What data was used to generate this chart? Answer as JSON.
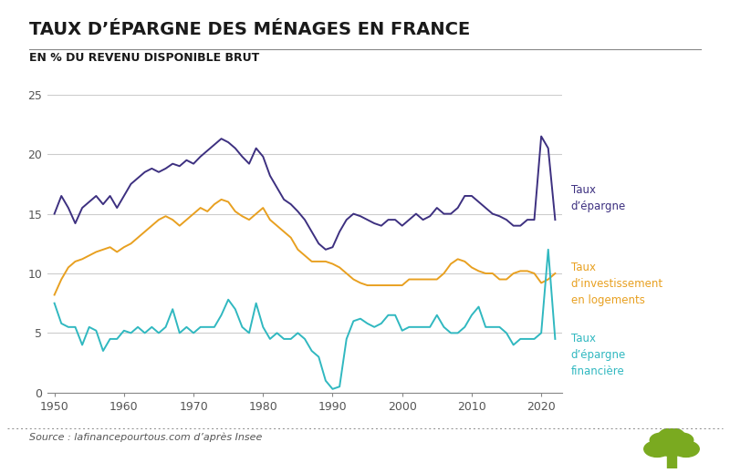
{
  "title": "TAUX D’ÉPARGNE DES MÉNAGES EN FRANCE",
  "subtitle": "EN % DU REVENU DISPONIBLE BRUT",
  "source": "Source : lafinancepourtous.com d’après Insee",
  "colors": {
    "taux_epargne": "#3d3080",
    "taux_investissement": "#e8a020",
    "taux_financiere": "#30b8c0"
  },
  "ylim": [
    0,
    25
  ],
  "yticks": [
    0,
    5,
    10,
    15,
    20,
    25
  ],
  "xlim": [
    1949,
    2023
  ],
  "xticks": [
    1950,
    1960,
    1970,
    1980,
    1990,
    2000,
    2010,
    2020
  ],
  "taux_epargne_years": [
    1950,
    1951,
    1952,
    1953,
    1954,
    1955,
    1956,
    1957,
    1958,
    1959,
    1960,
    1961,
    1962,
    1963,
    1964,
    1965,
    1966,
    1967,
    1968,
    1969,
    1970,
    1971,
    1972,
    1973,
    1974,
    1975,
    1976,
    1977,
    1978,
    1979,
    1980,
    1981,
    1982,
    1983,
    1984,
    1985,
    1986,
    1987,
    1988,
    1989,
    1990,
    1991,
    1992,
    1993,
    1994,
    1995,
    1996,
    1997,
    1998,
    1999,
    2000,
    2001,
    2002,
    2003,
    2004,
    2005,
    2006,
    2007,
    2008,
    2009,
    2010,
    2011,
    2012,
    2013,
    2014,
    2015,
    2016,
    2017,
    2018,
    2019,
    2020,
    2021,
    2022
  ],
  "taux_epargne_values": [
    15.0,
    16.5,
    15.5,
    14.2,
    15.5,
    16.0,
    16.5,
    15.8,
    16.5,
    15.5,
    16.5,
    17.5,
    18.0,
    18.5,
    18.8,
    18.5,
    18.8,
    19.2,
    19.0,
    19.5,
    19.2,
    19.8,
    20.3,
    20.8,
    21.3,
    21.0,
    20.5,
    19.8,
    19.2,
    20.5,
    19.8,
    18.2,
    17.2,
    16.2,
    15.8,
    15.2,
    14.5,
    13.5,
    12.5,
    12.0,
    12.2,
    13.5,
    14.5,
    15.0,
    14.8,
    14.5,
    14.2,
    14.0,
    14.5,
    14.5,
    14.0,
    14.5,
    15.0,
    14.5,
    14.8,
    15.5,
    15.0,
    15.0,
    15.5,
    16.5,
    16.5,
    16.0,
    15.5,
    15.0,
    14.8,
    14.5,
    14.0,
    14.0,
    14.5,
    14.5,
    21.5,
    20.5,
    14.5
  ],
  "taux_investissement_years": [
    1950,
    1951,
    1952,
    1953,
    1954,
    1955,
    1956,
    1957,
    1958,
    1959,
    1960,
    1961,
    1962,
    1963,
    1964,
    1965,
    1966,
    1967,
    1968,
    1969,
    1970,
    1971,
    1972,
    1973,
    1974,
    1975,
    1976,
    1977,
    1978,
    1979,
    1980,
    1981,
    1982,
    1983,
    1984,
    1985,
    1986,
    1987,
    1988,
    1989,
    1990,
    1991,
    1992,
    1993,
    1994,
    1995,
    1996,
    1997,
    1998,
    1999,
    2000,
    2001,
    2002,
    2003,
    2004,
    2005,
    2006,
    2007,
    2008,
    2009,
    2010,
    2011,
    2012,
    2013,
    2014,
    2015,
    2016,
    2017,
    2018,
    2019,
    2020,
    2021,
    2022
  ],
  "taux_investissement_values": [
    8.2,
    9.5,
    10.5,
    11.0,
    11.2,
    11.5,
    11.8,
    12.0,
    12.2,
    11.8,
    12.2,
    12.5,
    13.0,
    13.5,
    14.0,
    14.5,
    14.8,
    14.5,
    14.0,
    14.5,
    15.0,
    15.5,
    15.2,
    15.8,
    16.2,
    16.0,
    15.2,
    14.8,
    14.5,
    15.0,
    15.5,
    14.5,
    14.0,
    13.5,
    13.0,
    12.0,
    11.5,
    11.0,
    11.0,
    11.0,
    10.8,
    10.5,
    10.0,
    9.5,
    9.2,
    9.0,
    9.0,
    9.0,
    9.0,
    9.0,
    9.0,
    9.5,
    9.5,
    9.5,
    9.5,
    9.5,
    10.0,
    10.8,
    11.2,
    11.0,
    10.5,
    10.2,
    10.0,
    10.0,
    9.5,
    9.5,
    10.0,
    10.2,
    10.2,
    10.0,
    9.2,
    9.5,
    10.0
  ],
  "taux_financiere_years": [
    1950,
    1951,
    1952,
    1953,
    1954,
    1955,
    1956,
    1957,
    1958,
    1959,
    1960,
    1961,
    1962,
    1963,
    1964,
    1965,
    1966,
    1967,
    1968,
    1969,
    1970,
    1971,
    1972,
    1973,
    1974,
    1975,
    1976,
    1977,
    1978,
    1979,
    1980,
    1981,
    1982,
    1983,
    1984,
    1985,
    1986,
    1987,
    1988,
    1989,
    1990,
    1991,
    1992,
    1993,
    1994,
    1995,
    1996,
    1997,
    1998,
    1999,
    2000,
    2001,
    2002,
    2003,
    2004,
    2005,
    2006,
    2007,
    2008,
    2009,
    2010,
    2011,
    2012,
    2013,
    2014,
    2015,
    2016,
    2017,
    2018,
    2019,
    2020,
    2021,
    2022
  ],
  "taux_financiere_values": [
    7.5,
    5.8,
    5.5,
    5.5,
    4.0,
    5.5,
    5.2,
    3.5,
    4.5,
    4.5,
    5.2,
    5.0,
    5.5,
    5.0,
    5.5,
    5.0,
    5.5,
    7.0,
    5.0,
    5.5,
    5.0,
    5.5,
    5.5,
    5.5,
    6.5,
    7.8,
    7.0,
    5.5,
    5.0,
    7.5,
    5.5,
    4.5,
    5.0,
    4.5,
    4.5,
    5.0,
    4.5,
    3.5,
    3.0,
    1.0,
    0.3,
    0.5,
    4.5,
    6.0,
    6.2,
    5.8,
    5.5,
    5.8,
    6.5,
    6.5,
    5.2,
    5.5,
    5.5,
    5.5,
    5.5,
    6.5,
    5.5,
    5.0,
    5.0,
    5.5,
    6.5,
    7.2,
    5.5,
    5.5,
    5.5,
    5.0,
    4.0,
    4.5,
    4.5,
    4.5,
    5.0,
    12.0,
    4.5
  ],
  "ann_epargne": {
    "text": "Taux\nd’épargne",
    "y_fig": 0.58,
    "color": "#3d3080"
  },
  "ann_invest": {
    "text": "Taux\nd’investissement\nen logements",
    "y_fig": 0.4,
    "color": "#e8a020"
  },
  "ann_fin": {
    "text": "Taux\nd’épargne\nfinancière",
    "y_fig": 0.25,
    "color": "#30b8c0"
  },
  "bg_color": "#ffffff",
  "grid_color": "#cccccc",
  "spine_color": "#888888",
  "tick_color": "#555555",
  "title_fontsize": 14,
  "subtitle_fontsize": 9,
  "ann_fontsize": 8.5,
  "source_fontsize": 8,
  "line_width": 1.4,
  "tree_color": "#7aaa20"
}
